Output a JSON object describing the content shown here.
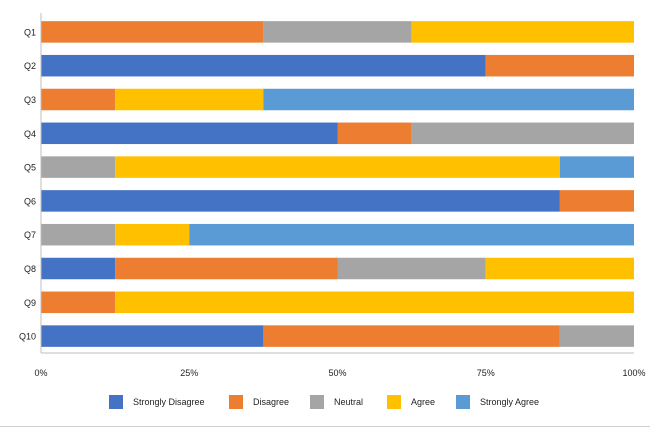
{
  "chart_data": {
    "type": "bar",
    "orientation": "horizontal",
    "stacked": "percent",
    "title": "",
    "xlabel": "",
    "ylabel": "",
    "xlim": [
      0,
      100
    ],
    "x_ticks": [
      "0%",
      "25%",
      "50%",
      "75%",
      "100%"
    ],
    "grid": false,
    "legend_position": "bottom",
    "categories": [
      "Q1",
      "Q2",
      "Q3",
      "Q4",
      "Q5",
      "Q6",
      "Q7",
      "Q8",
      "Q9",
      "Q10"
    ],
    "series": [
      {
        "name": "Strongly Disagree",
        "color": "#4472C4",
        "values": [
          0,
          75,
          0,
          50,
          0,
          87.5,
          0,
          12.5,
          0,
          37.5
        ]
      },
      {
        "name": "Disagree",
        "color": "#ED7D31",
        "values": [
          37.5,
          25,
          12.5,
          12.5,
          0,
          12.5,
          0,
          37.5,
          12.5,
          50
        ]
      },
      {
        "name": "Neutral",
        "color": "#A5A5A5",
        "values": [
          25,
          0,
          0,
          37.5,
          12.5,
          0,
          12.5,
          25,
          0,
          12.5
        ]
      },
      {
        "name": "Agree",
        "color": "#FFC000",
        "values": [
          37.5,
          0,
          25,
          0,
          75,
          0,
          12.5,
          25,
          87.5,
          0
        ]
      },
      {
        "name": "Strongly Agree",
        "color": "#5B9BD5",
        "values": [
          0,
          0,
          62.5,
          0,
          12.5,
          0,
          75,
          0,
          0,
          0
        ]
      }
    ]
  }
}
